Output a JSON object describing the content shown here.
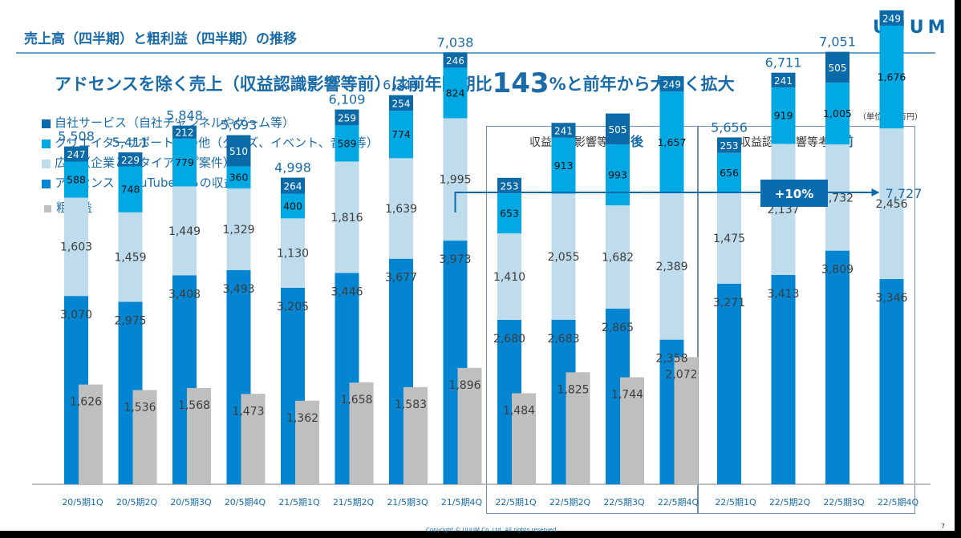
{
  "header": {
    "title": "売上高（四半期）と粗利益（四半期）の推移",
    "logo": "UUUM"
  },
  "headline": {
    "prefix": "アドセンスを除く売上（収益認識影響等前）は前年同期比",
    "highlight": "143",
    "suffix": "%と前年から大きく拡大"
  },
  "unit_label": "（単位：百万円）",
  "sections": [
    {
      "label": "収益認識影響等考慮",
      "emphasis": "後"
    },
    {
      "label": "収益認識影響等考慮",
      "emphasis": "前"
    }
  ],
  "annotation": {
    "growth_label": "+10%",
    "from_value": "7,038",
    "to_value": "7,727"
  },
  "colors": {
    "own_service": "#0b6aa8",
    "creator_support": "#00a8e4",
    "advertising": "#bfdcec",
    "adsense": "#0385d1",
    "gross_profit": "#bfbfbf",
    "accent": "#1a6ba8",
    "box": "#0a6cae"
  },
  "footer": {
    "copyright": "Copyright © UUUM Co.,Ltd. All rights reserved.",
    "page_number": "7"
  },
  "chart_data": {
    "type": "bar",
    "stacked": true,
    "title": "売上高（四半期）と粗利益（四半期）の推移",
    "xlabel": "",
    "ylabel": "百万円",
    "ylim": [
      0,
      8000
    ],
    "grid": false,
    "legend_position": "top-left",
    "categories": [
      "20/5期1Q",
      "20/5期2Q",
      "20/5期3Q",
      "20/5期4Q",
      "21/5期1Q",
      "21/5期2Q",
      "21/5期3Q",
      "21/5期4Q",
      "22/5期1Q",
      "22/5期2Q",
      "22/5期3Q",
      "22/5期4Q",
      "22/5期1Q",
      "22/5期2Q",
      "22/5期3Q",
      "22/5期4Q"
    ],
    "groups": [
      {
        "label": "",
        "range": [
          0,
          7
        ]
      },
      {
        "label": "収益認識影響等考慮後",
        "range": [
          8,
          11
        ]
      },
      {
        "label": "収益認識影響等考慮前",
        "range": [
          12,
          15
        ]
      }
    ],
    "series": [
      {
        "name": "アドセンス（YouTubeからの収益）",
        "key": "adsense",
        "values": [
          3070,
          2975,
          3408,
          3493,
          3205,
          3446,
          3677,
          3973,
          2680,
          2683,
          2865,
          2358,
          3271,
          3413,
          3809,
          3346
        ]
      },
      {
        "name": "広告（企業とのタイアップ案件）",
        "key": "advertising",
        "values": [
          1603,
          1459,
          1449,
          1329,
          1130,
          1816,
          1639,
          1995,
          1410,
          2055,
          1682,
          2389,
          1475,
          2137,
          1732,
          2456
        ]
      },
      {
        "name": "クリエイターサポートその他（グッズ、イベント、音楽等）",
        "key": "creator_support",
        "values": [
          588,
          748,
          779,
          360,
          400,
          589,
          774,
          824,
          653,
          913,
          993,
          1657,
          656,
          919,
          1005,
          1676
        ]
      },
      {
        "name": "自社サービス（自社チャンネルやゲーム等）",
        "key": "own_service",
        "values": [
          247,
          229,
          212,
          510,
          264,
          259,
          254,
          246,
          253,
          241,
          505,
          249,
          253,
          241,
          505,
          249
        ]
      },
      {
        "name": "粗利益",
        "key": "gross_profit",
        "values": [
          1626,
          1536,
          1568,
          1473,
          1362,
          1658,
          1583,
          1896,
          1484,
          1825,
          1744,
          2072,
          null,
          null,
          null,
          null
        ]
      }
    ],
    "totals": [
      "5,508",
      "5,411",
      "5,848",
      "5,693",
      "4,998",
      "6,109",
      "6,344",
      "7,038",
      "",
      "",
      "",
      "",
      "5,656",
      "6,711",
      "7,051",
      ""
    ],
    "legend": [
      {
        "name": "自社サービス（自社チャンネルやゲーム等）",
        "key": "own_service"
      },
      {
        "name": "クリエイターサポートその他（グッズ、イベント、音楽等）",
        "key": "creator_support"
      },
      {
        "name": "広告（企業とのタイアップ案件）",
        "key": "advertising"
      },
      {
        "name": "アドセンス（YouTubeからの収益）",
        "key": "adsense"
      },
      {
        "name": "粗利益",
        "key": "gross_profit"
      }
    ]
  }
}
